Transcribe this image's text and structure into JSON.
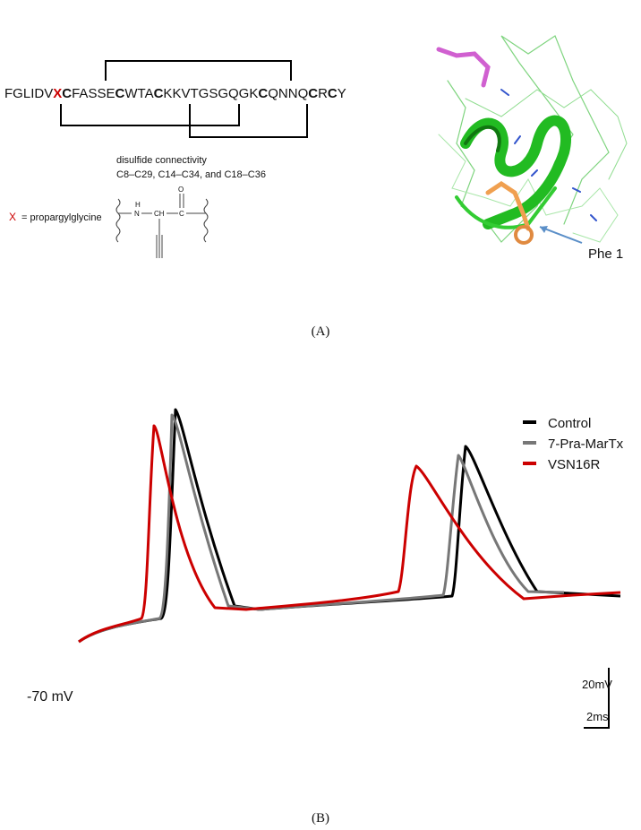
{
  "panel_a": {
    "sequence": "FGLIDVXCFASSECWTACKKVTGSGQGKCQNNQCRCY",
    "connectivity_title": "disulfide connectivity",
    "connectivity": "C8–C29, C14–C34, and C18–C36",
    "x_symbol": "X",
    "x_definition": "= propargylglycine",
    "structure_atoms": [
      "H",
      "N",
      "CH",
      "C",
      "O"
    ],
    "residue_label": "Phe 1",
    "caption": "(A)"
  },
  "panel_b": {
    "legend": [
      {
        "name": "Control",
        "color": "#000000"
      },
      {
        "name": "7-Pra-MarTx",
        "color": "#777777"
      },
      {
        "name": "VSN16R",
        "color": "#cc0000"
      }
    ],
    "scale_voltage": "20mV",
    "scale_time": "2ms",
    "resting_label": "-70 mV",
    "caption": "(B)"
  }
}
